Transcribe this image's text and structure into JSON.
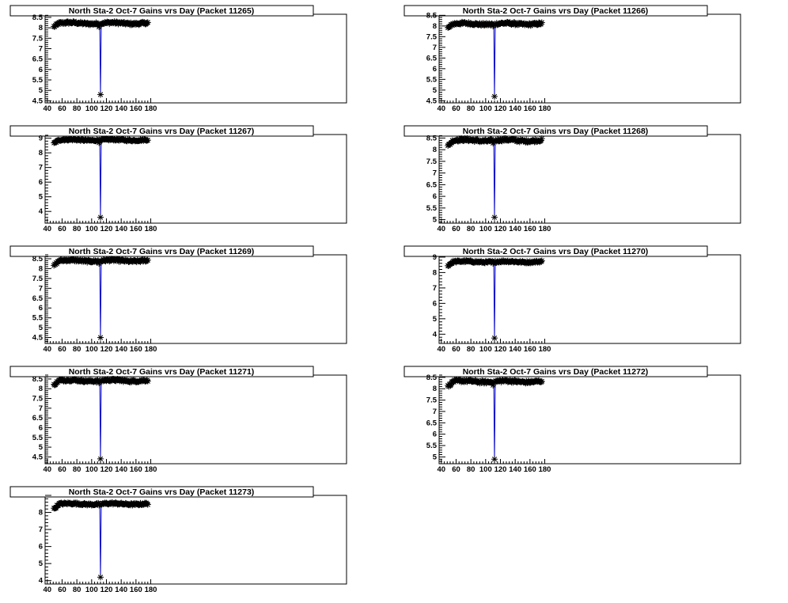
{
  "chart_data": [
    {
      "type": "line",
      "title": "North Sta-2 Oct-7 Gains vrs Day (Packet 11265)",
      "xlim": [
        37,
        445
      ],
      "ylim": [
        4.4,
        8.65
      ],
      "xticks": [
        40,
        60,
        80,
        100,
        120,
        140,
        160,
        180
      ],
      "yticks": [
        4.5,
        5,
        5.5,
        6,
        6.5,
        7,
        7.5,
        8,
        8.5
      ],
      "base": 8.22,
      "start": 8.05,
      "dip": 4.8,
      "color": "#000000",
      "line_color": "#0000cc",
      "grid": false
    },
    {
      "type": "line",
      "title": "North Sta-2 Oct-7 Gains vrs Day (Packet 11266)",
      "xlim": [
        37,
        445
      ],
      "ylim": [
        4.4,
        8.55
      ],
      "xticks": [
        40,
        60,
        80,
        100,
        120,
        140,
        160,
        180
      ],
      "yticks": [
        4.5,
        5,
        5.5,
        6,
        6.5,
        7,
        7.5,
        8,
        8.5
      ],
      "base": 8.1,
      "start": 7.9,
      "dip": 4.7,
      "color": "#000000",
      "line_color": "#0000cc",
      "grid": false
    },
    {
      "type": "line",
      "title": "North Sta-2 Oct-7 Gains vrs Day (Packet 11267)",
      "xlim": [
        37,
        445
      ],
      "ylim": [
        3.2,
        9.25
      ],
      "xticks": [
        40,
        60,
        80,
        100,
        120,
        140,
        160,
        180
      ],
      "yticks": [
        4,
        5,
        6,
        7,
        8,
        9
      ],
      "base": 8.88,
      "start": 8.65,
      "dip": 3.6,
      "color": "#000000",
      "line_color": "#0000cc",
      "grid": false
    },
    {
      "type": "line",
      "title": "North Sta-2 Oct-7 Gains vrs Day (Packet 11268)",
      "xlim": [
        37,
        445
      ],
      "ylim": [
        4.85,
        8.65
      ],
      "xticks": [
        40,
        60,
        80,
        100,
        120,
        140,
        160,
        180
      ],
      "yticks": [
        5,
        5.5,
        6,
        6.5,
        7,
        7.5,
        8,
        8.5
      ],
      "base": 8.4,
      "start": 8.15,
      "dip": 5.1,
      "color": "#000000",
      "line_color": "#0000cc",
      "grid": false
    },
    {
      "type": "line",
      "title": "North Sta-2 Oct-7 Gains vrs Day (Packet 11269)",
      "xlim": [
        37,
        445
      ],
      "ylim": [
        4.2,
        8.7
      ],
      "xticks": [
        40,
        60,
        80,
        100,
        120,
        140,
        160,
        180
      ],
      "yticks": [
        4.5,
        5,
        5.5,
        6,
        6.5,
        7,
        7.5,
        8,
        8.5
      ],
      "base": 8.4,
      "start": 8.15,
      "dip": 4.5,
      "color": "#000000",
      "line_color": "#0000cc",
      "grid": false
    },
    {
      "type": "line",
      "title": "North Sta-2 Oct-7 Gains vrs Day (Packet 11270)",
      "xlim": [
        37,
        445
      ],
      "ylim": [
        3.4,
        9.15
      ],
      "xticks": [
        40,
        60,
        80,
        100,
        120,
        140,
        160,
        180
      ],
      "yticks": [
        4,
        5,
        6,
        7,
        8,
        9
      ],
      "base": 8.7,
      "start": 8.45,
      "dip": 3.75,
      "color": "#000000",
      "line_color": "#0000cc",
      "grid": false
    },
    {
      "type": "line",
      "title": "North Sta-2 Oct-7 Gains vrs Day (Packet 11271)",
      "xlim": [
        37,
        445
      ],
      "ylim": [
        4.15,
        8.7
      ],
      "xticks": [
        40,
        60,
        80,
        100,
        120,
        140,
        160,
        180
      ],
      "yticks": [
        4.5,
        5,
        5.5,
        6,
        6.5,
        7,
        7.5,
        8,
        8.5
      ],
      "base": 8.42,
      "start": 8.2,
      "dip": 4.4,
      "color": "#000000",
      "line_color": "#0000cc",
      "grid": false
    },
    {
      "type": "line",
      "title": "North Sta-2 Oct-7 Gains vrs Day (Packet 11272)",
      "xlim": [
        37,
        445
      ],
      "ylim": [
        4.7,
        8.6
      ],
      "xticks": [
        40,
        60,
        80,
        100,
        120,
        140,
        160,
        180
      ],
      "yticks": [
        5,
        5.5,
        6,
        6.5,
        7,
        7.5,
        8,
        8.5
      ],
      "base": 8.32,
      "start": 8.1,
      "dip": 4.9,
      "color": "#000000",
      "line_color": "#0000cc",
      "grid": false
    },
    {
      "type": "line",
      "title": "North Sta-2 Oct-7 Gains vrs Day (Packet 11273)",
      "xlim": [
        37,
        445
      ],
      "ylim": [
        3.8,
        9.0
      ],
      "xticks": [
        40,
        60,
        80,
        100,
        120,
        140,
        160,
        180
      ],
      "yticks": [
        4,
        5,
        6,
        7,
        8
      ],
      "base": 8.5,
      "start": 8.2,
      "dip": 4.2,
      "color": "#000000",
      "line_color": "#0000cc",
      "grid": false
    }
  ]
}
